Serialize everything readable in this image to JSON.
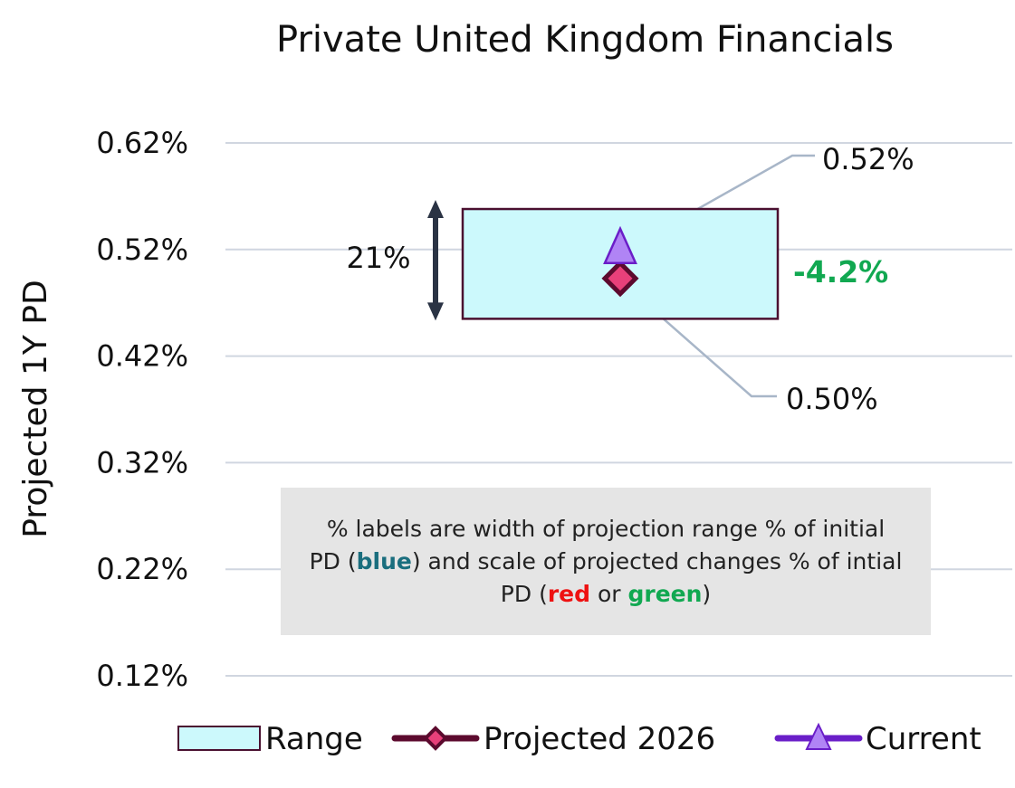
{
  "chart_data": {
    "type": "range",
    "title": "Private United Kingdom Financials",
    "ylabel": "Projected 1Y PD",
    "y_ticks": [
      "0.62%",
      "0.52%",
      "0.42%",
      "0.32%",
      "0.22%",
      "0.12%"
    ],
    "ylim": [
      0.12,
      0.62
    ],
    "range": {
      "low": 0.455,
      "high": 0.558
    },
    "current": 0.52,
    "projected": 0.498,
    "current_label": "0.52%",
    "projected_label": "0.50%",
    "range_width_label": "21%",
    "change_label": "-4.2%",
    "legend": [
      {
        "label": "Range"
      },
      {
        "label": "Projected 2026"
      },
      {
        "label": "Current"
      }
    ]
  },
  "note": {
    "prefix": "% labels are width of projection range % of initial PD (",
    "blue_word": "blue",
    "mid": ") and scale of projected changes % of intial PD (",
    "red_word": "red",
    "or_text": " or ",
    "green_word": "green",
    "suffix": ")"
  },
  "colors": {
    "range_fill": "#ccf9fc",
    "range_stroke": "#4a1030",
    "projected": "#5c0a2e",
    "projected_fill": "#e8407a",
    "current": "#6a1ec8",
    "current_fill": "#b084f5",
    "change_positive": "#11a851",
    "blue": "#1a6e7e",
    "red": "#ee1111",
    "grid": "#d0d6e0",
    "leader": "#a8b6c8",
    "arrow": "#2a3344"
  }
}
